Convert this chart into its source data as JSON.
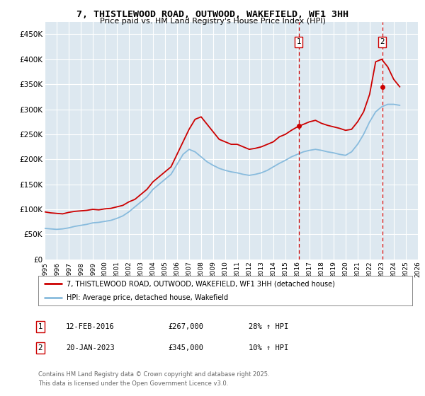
{
  "title": "7, THISTLEWOOD ROAD, OUTWOOD, WAKEFIELD, WF1 3HH",
  "subtitle": "Price paid vs. HM Land Registry's House Price Index (HPI)",
  "xmin": 1995,
  "xmax": 2026,
  "ymin": 0,
  "ymax": 475000,
  "yticks": [
    0,
    50000,
    100000,
    150000,
    200000,
    250000,
    300000,
    350000,
    400000,
    450000
  ],
  "ytick_labels": [
    "£0",
    "£50K",
    "£100K",
    "£150K",
    "£200K",
    "£250K",
    "£300K",
    "£350K",
    "£400K",
    "£450K"
  ],
  "xticks": [
    1995,
    1996,
    1997,
    1998,
    1999,
    2000,
    2001,
    2002,
    2003,
    2004,
    2005,
    2006,
    2007,
    2008,
    2009,
    2010,
    2011,
    2012,
    2013,
    2014,
    2015,
    2016,
    2017,
    2018,
    2019,
    2020,
    2021,
    2022,
    2023,
    2024,
    2025,
    2026
  ],
  "background_color": "#dde8f0",
  "grid_color": "#ffffff",
  "red_line_color": "#cc0000",
  "blue_line_color": "#88bbdd",
  "sale1_x": 2016.11,
  "sale1_y": 267000,
  "sale1_label": "1",
  "sale2_x": 2023.05,
  "sale2_y": 345000,
  "sale2_label": "2",
  "legend_line1": "7, THISTLEWOOD ROAD, OUTWOOD, WAKEFIELD, WF1 3HH (detached house)",
  "legend_line2": "HPI: Average price, detached house, Wakefield",
  "footer_line1": "Contains HM Land Registry data © Crown copyright and database right 2025.",
  "footer_line2": "This data is licensed under the Open Government Licence v3.0.",
  "table_row1_label": "1",
  "table_row1_date": "12-FEB-2016",
  "table_row1_price": "£267,000",
  "table_row1_hpi": "28% ↑ HPI",
  "table_row2_label": "2",
  "table_row2_date": "20-JAN-2023",
  "table_row2_price": "£345,000",
  "table_row2_hpi": "10% ↑ HPI",
  "red_x": [
    1995.0,
    1995.5,
    1996.0,
    1996.5,
    1997.0,
    1997.5,
    1998.0,
    1998.5,
    1999.0,
    1999.5,
    2000.0,
    2000.5,
    2001.0,
    2001.5,
    2002.0,
    2002.5,
    2003.0,
    2003.5,
    2004.0,
    2004.5,
    2005.0,
    2005.5,
    2006.0,
    2006.5,
    2007.0,
    2007.5,
    2008.0,
    2008.5,
    2009.0,
    2009.5,
    2010.0,
    2010.5,
    2011.0,
    2011.5,
    2012.0,
    2012.5,
    2013.0,
    2013.5,
    2014.0,
    2014.5,
    2015.0,
    2015.5,
    2016.0,
    2016.5,
    2017.0,
    2017.5,
    2018.0,
    2018.5,
    2019.0,
    2019.5,
    2020.0,
    2020.5,
    2021.0,
    2021.5,
    2022.0,
    2022.5,
    2023.0,
    2023.5,
    2024.0,
    2024.5
  ],
  "red_y": [
    95000,
    93000,
    92000,
    91000,
    94000,
    96000,
    97000,
    98000,
    100000,
    99000,
    101000,
    102000,
    105000,
    108000,
    115000,
    120000,
    130000,
    140000,
    155000,
    165000,
    175000,
    185000,
    210000,
    235000,
    260000,
    280000,
    285000,
    270000,
    255000,
    240000,
    235000,
    230000,
    230000,
    225000,
    220000,
    222000,
    225000,
    230000,
    235000,
    245000,
    250000,
    258000,
    265000,
    270000,
    275000,
    278000,
    272000,
    268000,
    265000,
    262000,
    258000,
    260000,
    275000,
    295000,
    330000,
    395000,
    400000,
    385000,
    360000,
    345000
  ],
  "blue_x": [
    1995.0,
    1995.5,
    1996.0,
    1996.5,
    1997.0,
    1997.5,
    1998.0,
    1998.5,
    1999.0,
    1999.5,
    2000.0,
    2000.5,
    2001.0,
    2001.5,
    2002.0,
    2002.5,
    2003.0,
    2003.5,
    2004.0,
    2004.5,
    2005.0,
    2005.5,
    2006.0,
    2006.5,
    2007.0,
    2007.5,
    2008.0,
    2008.5,
    2009.0,
    2009.5,
    2010.0,
    2010.5,
    2011.0,
    2011.5,
    2012.0,
    2012.5,
    2013.0,
    2013.5,
    2014.0,
    2014.5,
    2015.0,
    2015.5,
    2016.0,
    2016.5,
    2017.0,
    2017.5,
    2018.0,
    2018.5,
    2019.0,
    2019.5,
    2020.0,
    2020.5,
    2021.0,
    2021.5,
    2022.0,
    2022.5,
    2023.0,
    2023.5,
    2024.0,
    2024.5
  ],
  "blue_y": [
    62000,
    61000,
    60000,
    61000,
    63000,
    66000,
    68000,
    70000,
    73000,
    74000,
    76000,
    78000,
    82000,
    87000,
    95000,
    105000,
    115000,
    125000,
    140000,
    150000,
    160000,
    170000,
    190000,
    210000,
    220000,
    215000,
    205000,
    195000,
    188000,
    182000,
    178000,
    175000,
    173000,
    170000,
    168000,
    170000,
    173000,
    178000,
    185000,
    192000,
    198000,
    205000,
    210000,
    215000,
    218000,
    220000,
    218000,
    215000,
    213000,
    210000,
    208000,
    215000,
    230000,
    250000,
    275000,
    295000,
    305000,
    310000,
    310000,
    308000
  ]
}
